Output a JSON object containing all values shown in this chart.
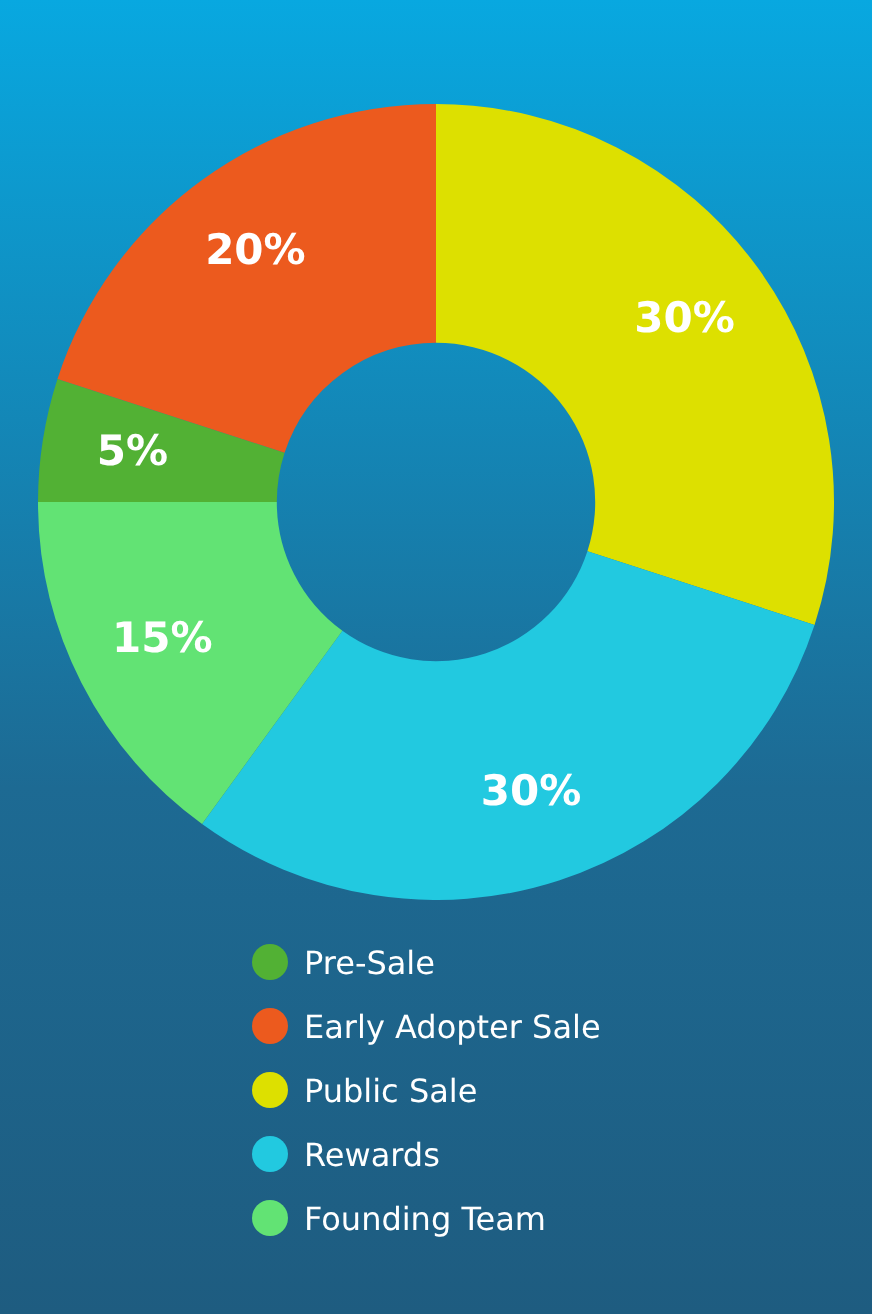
{
  "chart_data": {
    "type": "donut",
    "categories": [
      "Pre-Sale",
      "Early Adopter Sale",
      "Public Sale",
      "Rewards",
      "Founding Team"
    ],
    "values": [
      5,
      20,
      30,
      30,
      15
    ],
    "colors": [
      "#52b134",
      "#ec5a1e",
      "#dde000",
      "#22c9e0",
      "#62e374"
    ],
    "value_labels": [
      "5%",
      "20%",
      "30%",
      "30%",
      "15%"
    ],
    "legend": "bottom"
  }
}
